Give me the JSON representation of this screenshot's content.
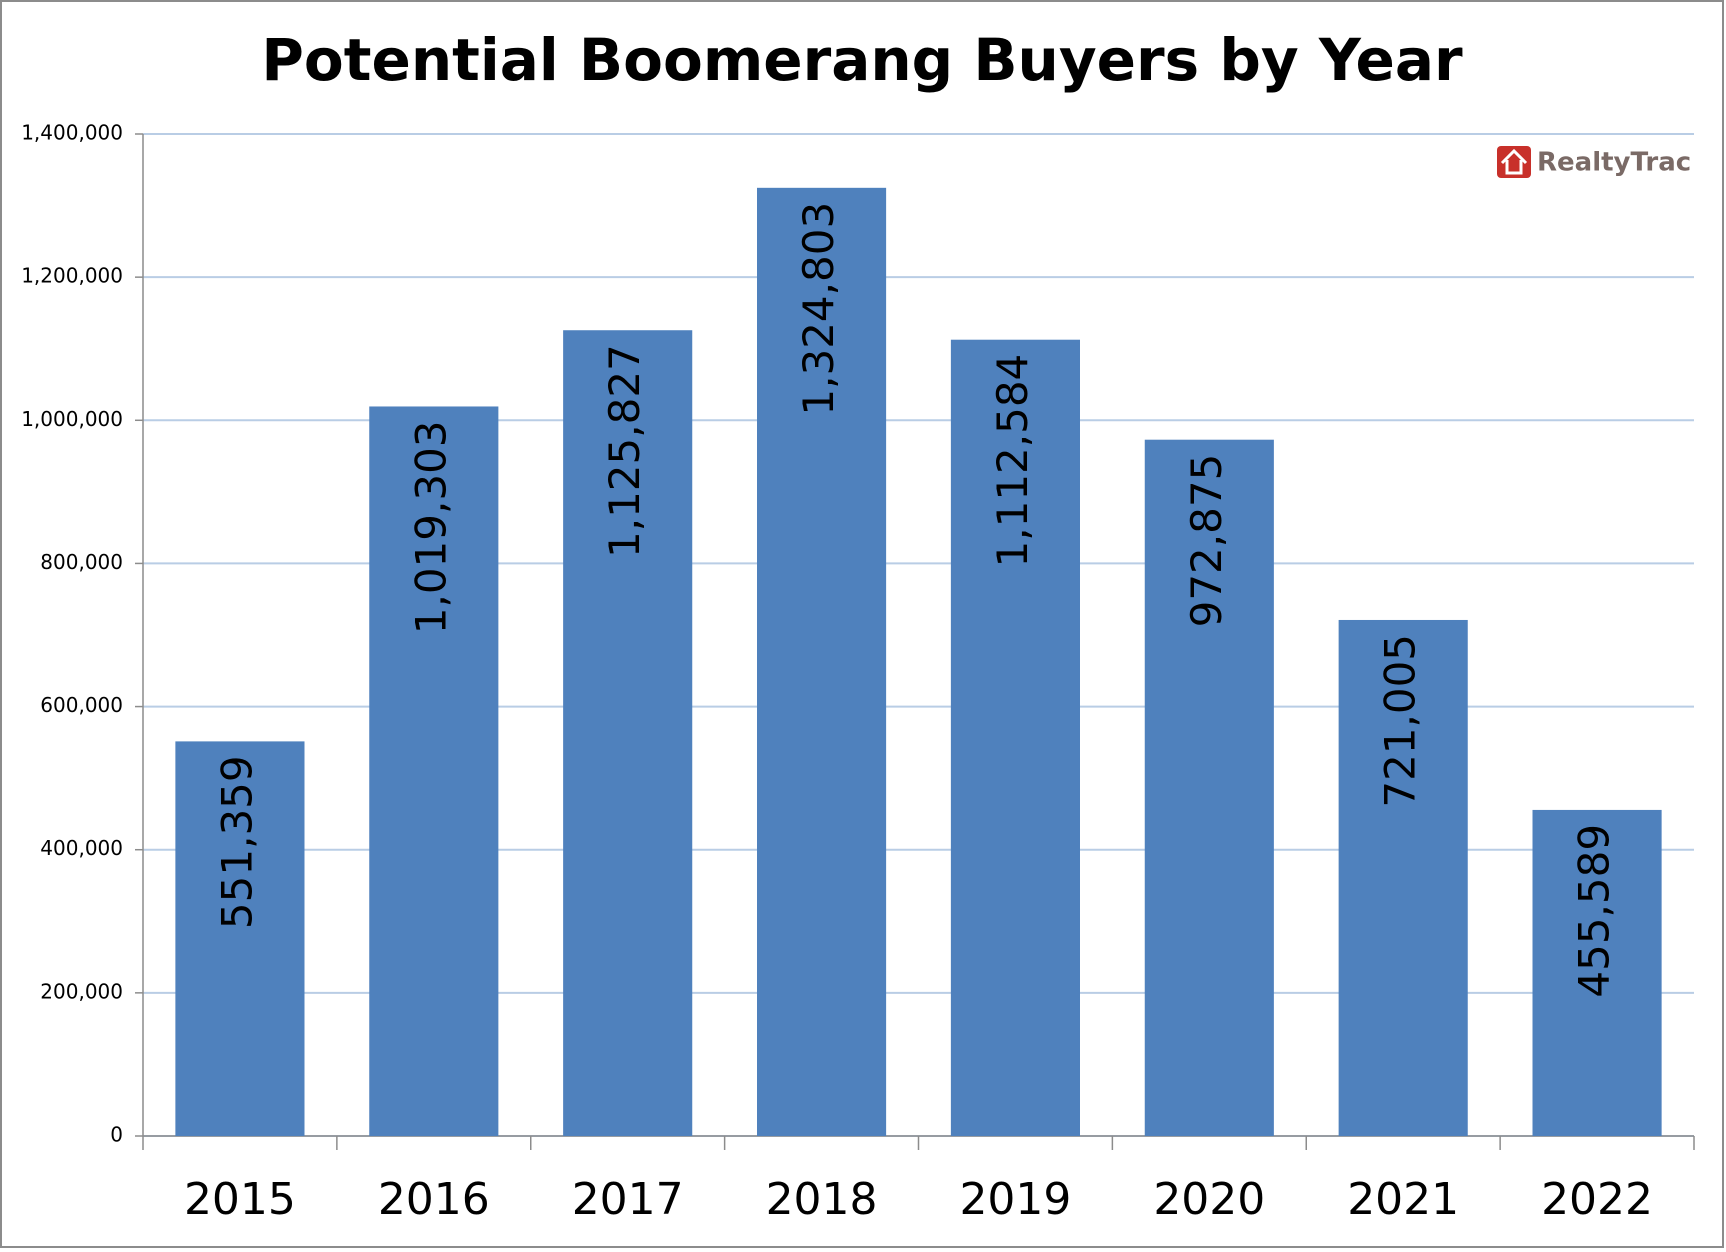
{
  "chart_data": {
    "type": "bar",
    "title": "Potential Boomerang Buyers by Year",
    "logo": "RealtyTrac",
    "categories": [
      "2015",
      "2016",
      "2017",
      "2018",
      "2019",
      "2020",
      "2021",
      "2022"
    ],
    "values": [
      551359,
      1019303,
      1125827,
      1324803,
      1112584,
      972875,
      721005,
      455589
    ],
    "value_labels": [
      "551,359",
      "1,019,303",
      "1,125,827",
      "1,324,803",
      "1,112,584",
      "972,875",
      "721,005",
      "455,589"
    ],
    "color": "#4f81bd",
    "ylim": [
      0,
      1400000
    ],
    "yticks": [
      0,
      {
        "value": 200000,
        "label": "200,000"
      },
      {
        "value": 400000,
        "label": "400,000"
      },
      {
        "value": 600000,
        "label": "600,000"
      },
      {
        "value": 800000,
        "label": "800,000"
      },
      {
        "value": 1000000,
        "label": "1,000,000"
      },
      {
        "value": 1200000,
        "label": "1,200,000"
      },
      {
        "value": 1400000,
        "label": "1,400,000"
      }
    ],
    "grid": true
  }
}
